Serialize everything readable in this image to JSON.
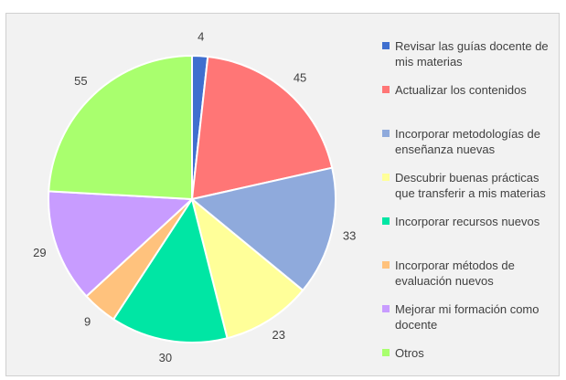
{
  "chart_data": {
    "type": "pie",
    "categories": [
      "Revisar las guías docente de mis materias",
      "Actualizar los contenidos",
      "Incorporar metodologías de enseñanza nuevas",
      "Descubrir buenas prácticas que transferir a mis materias",
      "Incorporar recursos nuevos",
      "Incorporar métodos de evaluación nuevos",
      "Mejorar mi formación como docente",
      "Otros"
    ],
    "values": [
      4,
      45,
      33,
      23,
      30,
      9,
      29,
      55
    ],
    "colors": [
      "#3f6fcf",
      "#ff7676",
      "#8faadc",
      "#ffff99",
      "#00e6a4",
      "#ffc27d",
      "#c89cff",
      "#a9ff6e"
    ],
    "legend": "right"
  }
}
